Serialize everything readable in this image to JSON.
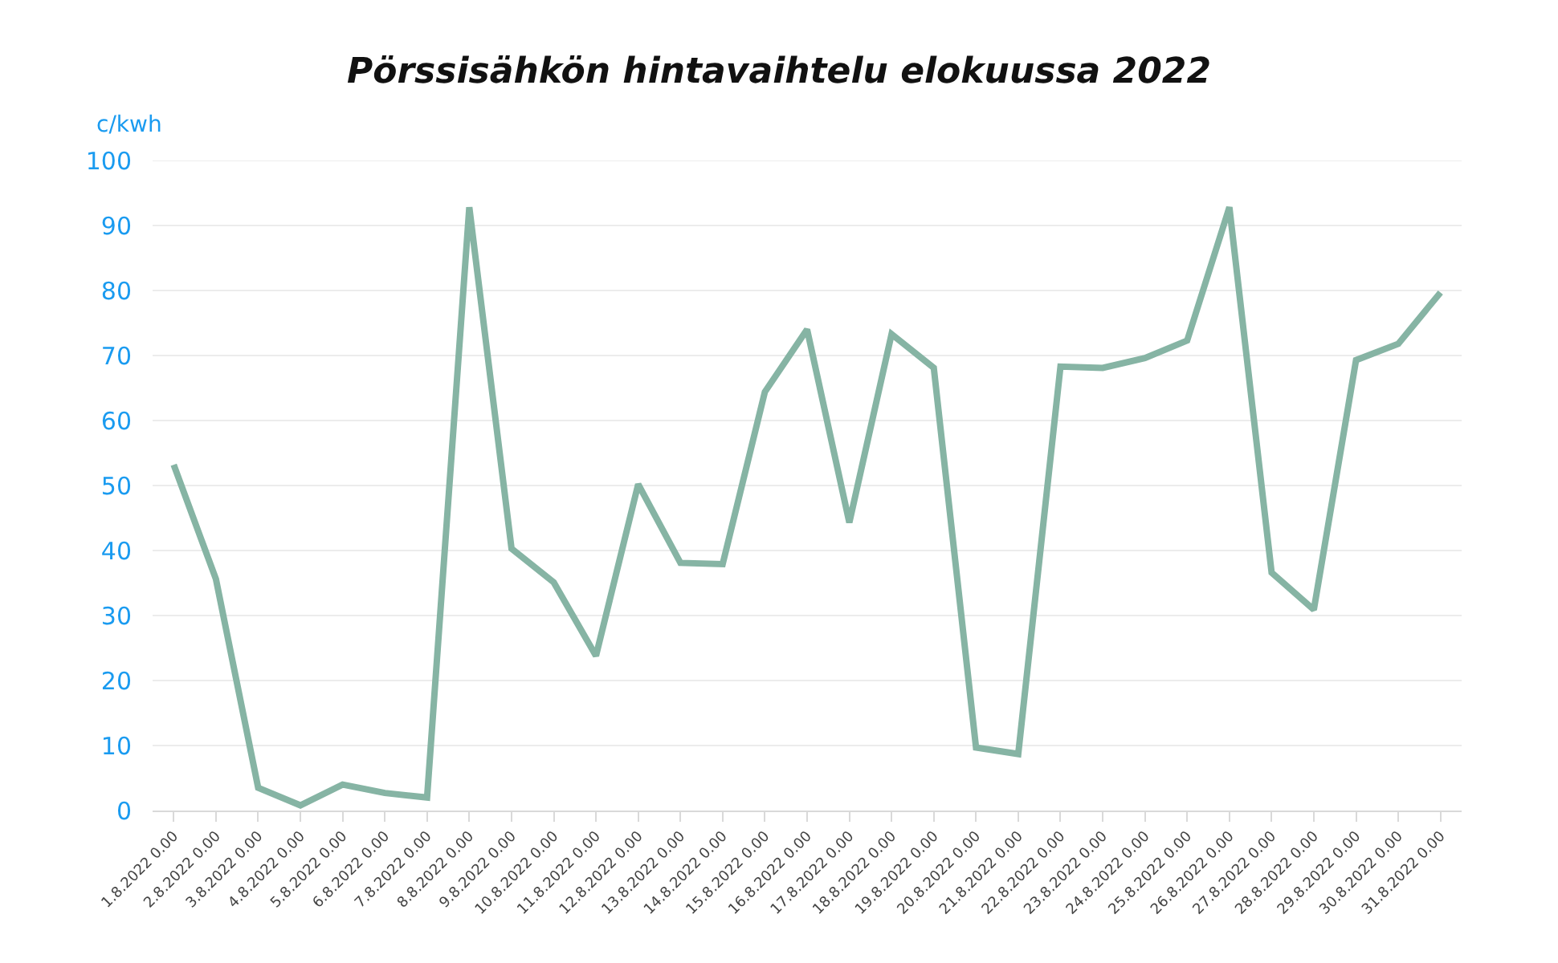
{
  "chart_data": {
    "type": "line",
    "title": "Pörssisähkön hintavaihtelu elokuussa 2022",
    "ylabel": "c/kwh",
    "categories": [
      "1.8.2022 0.00",
      "2.8.2022 0.00",
      "3.8.2022 0.00",
      "4.8.2022 0.00",
      "5.8.2022 0.00",
      "6.8.2022 0.00",
      "7.8.2022 0.00",
      "8.8.2022 0.00",
      "9.8.2022 0.00",
      "10.8.2022 0.00",
      "11.8.2022 0.00",
      "12.8.2022 0.00",
      "13.8.2022 0.00",
      "14.8.2022 0.00",
      "15.8.2022 0.00",
      "16.8.2022 0.00",
      "17.8.2022 0.00",
      "18.8.2022 0.00",
      "19.8.2022 0.00",
      "20.8.2022 0.00",
      "21.8.2022 0.00",
      "22.8.2022 0.00",
      "23.8.2022 0.00",
      "24.8.2022 0.00",
      "25.8.2022 0.00",
      "26.8.2022 0.00",
      "27.8.2022 0.00",
      "28.8.2022 0.00",
      "29.8.2022 0.00",
      "30.8.2022 0.00",
      "31.8.2022 0.00"
    ],
    "series": [
      {
        "color": "#86b4a4",
        "values": [
          53.2,
          35.6,
          3.5,
          0.8,
          4.0,
          2.7,
          2.0,
          92.8,
          40.3,
          35.1,
          23.8,
          50.2,
          38.1,
          37.9,
          64.4,
          74.0,
          44.3,
          73.3,
          68.1,
          9.7,
          8.7,
          68.3,
          68.1,
          69.6,
          72.3,
          92.8,
          36.6,
          30.9,
          69.3,
          71.8,
          79.7
        ]
      }
    ],
    "ylim": [
      0,
      100
    ],
    "yticks": [
      0,
      10,
      20,
      30,
      40,
      50,
      60,
      70,
      80,
      90,
      100
    ],
    "grid": "y",
    "marker": "none",
    "line_style": "solid"
  }
}
